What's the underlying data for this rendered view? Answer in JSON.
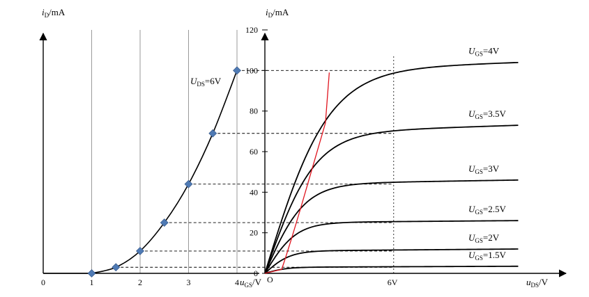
{
  "chart_data": [
    {
      "type": "line",
      "name_shown": false,
      "xlabel": {
        "main": "u",
        "sub": "GS",
        "unit": "/V"
      },
      "ylabel": {
        "main": "i",
        "sub": "D",
        "unit": "/mA"
      },
      "x_ticks": [
        "0",
        "1",
        "2",
        "3",
        "4"
      ],
      "y_ticks": [
        "0",
        "20",
        "40",
        "60",
        "80",
        "100",
        "120"
      ],
      "xlim": [
        0,
        4
      ],
      "ylim": [
        0,
        120
      ],
      "grid_x": [
        1,
        2,
        3,
        4
      ],
      "curve_label": {
        "main": "U",
        "sub": "DS",
        "rest": "=6V"
      },
      "series": [
        {
          "points": [
            [
              1,
              0
            ],
            [
              1.5,
              3
            ],
            [
              2,
              11
            ],
            [
              2.5,
              25
            ],
            [
              3,
              44
            ],
            [
              3.5,
              69
            ],
            [
              4,
              100
            ]
          ]
        }
      ]
    },
    {
      "type": "line",
      "xlabel": {
        "main": "u",
        "sub": "DS",
        "unit": "/V"
      },
      "ylabel": {
        "main": "i",
        "sub": "D",
        "unit": "/mA"
      },
      "origin_label": "O",
      "xlim": [
        0,
        15
      ],
      "ylim": [
        0,
        120
      ],
      "x_marker": {
        "value": 6,
        "label": "6V"
      },
      "curves": [
        {
          "ugs_main": "U",
          "ugs_sub": "GS",
          "ugs_rest": "=4V",
          "sat": 100,
          "end": 104
        },
        {
          "ugs_main": "U",
          "ugs_sub": "GS",
          "ugs_rest": "=3.5V",
          "sat": 69,
          "end": 73
        },
        {
          "ugs_main": "U",
          "ugs_sub": "GS",
          "ugs_rest": "=3V",
          "sat": 44,
          "end": 46
        },
        {
          "ugs_main": "U",
          "ugs_sub": "GS",
          "ugs_rest": "=2.5V",
          "sat": 25,
          "end": 26
        },
        {
          "ugs_main": "U",
          "ugs_sub": "GS",
          "ugs_rest": "=2V",
          "sat": 11,
          "end": 12
        },
        {
          "ugs_main": "U",
          "ugs_sub": "GS",
          "ugs_rest": "=1.5V",
          "sat": 3,
          "end": 3.5
        }
      ],
      "boundary_color": "#e0141e"
    }
  ]
}
